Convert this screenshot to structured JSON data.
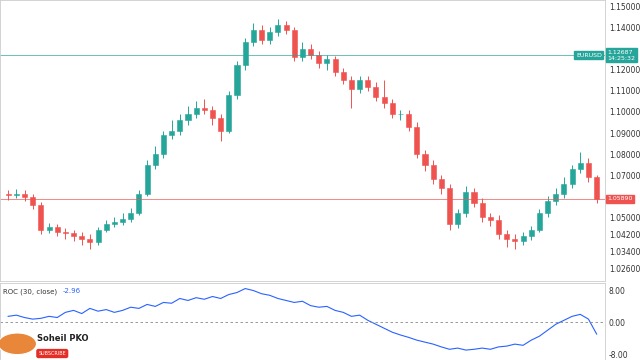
{
  "chart_data": [
    {
      "type": "candlestick",
      "x": [
        0,
        1,
        2,
        3,
        4,
        5,
        6,
        7,
        8,
        9,
        10,
        11,
        12,
        13,
        14,
        15,
        16,
        17,
        18,
        19,
        20,
        21,
        22,
        23,
        24,
        25,
        26,
        27,
        28,
        29,
        30,
        31,
        32,
        33,
        34,
        35,
        36,
        37,
        38,
        39,
        40,
        41,
        42,
        43,
        44,
        45,
        46,
        47,
        48,
        49,
        50,
        51,
        52,
        53,
        54,
        55,
        56,
        57,
        58,
        59,
        60,
        61,
        62,
        63,
        64,
        65,
        66,
        67,
        68,
        69,
        70,
        71,
        72
      ],
      "series": [
        {
          "name": "EURUSD",
          "colors": [
            "#26a69a",
            "#ef5350"
          ],
          "open": [
            1.061,
            1.0605,
            1.0612,
            1.0598,
            1.056,
            1.044,
            1.0455,
            1.043,
            1.0425,
            1.041,
            1.04,
            1.0385,
            1.044,
            1.047,
            1.048,
            1.0495,
            1.052,
            1.061,
            1.075,
            1.08,
            1.089,
            1.091,
            1.096,
            1.099,
            1.102,
            1.101,
            1.097,
            1.091,
            1.108,
            1.122,
            1.133,
            1.139,
            1.134,
            1.138,
            1.141,
            1.139,
            1.126,
            1.13,
            1.127,
            1.123,
            1.125,
            1.119,
            1.115,
            1.111,
            1.115,
            1.112,
            1.107,
            1.104,
            1.099,
            1.099,
            1.093,
            1.08,
            1.075,
            1.068,
            1.064,
            1.047,
            1.052,
            1.062,
            1.057,
            1.05,
            1.049,
            1.042,
            1.04,
            1.039,
            1.041,
            1.044,
            1.052,
            1.058,
            1.061,
            1.066,
            1.073,
            1.076,
            1.069
          ],
          "high": [
            1.063,
            1.0635,
            1.0628,
            1.061,
            1.0575,
            1.0475,
            1.047,
            1.045,
            1.044,
            1.043,
            1.042,
            1.0455,
            1.049,
            1.05,
            1.052,
            1.0545,
            1.063,
            1.077,
            1.084,
            1.091,
            1.096,
            1.099,
            1.103,
            1.105,
            1.106,
            1.103,
            1.099,
            1.11,
            1.124,
            1.135,
            1.142,
            1.141,
            1.14,
            1.144,
            1.143,
            1.14,
            1.133,
            1.132,
            1.129,
            1.127,
            1.1265,
            1.121,
            1.117,
            1.117,
            1.117,
            1.114,
            1.115,
            1.106,
            1.101,
            1.101,
            1.095,
            1.082,
            1.077,
            1.07,
            1.066,
            1.054,
            1.065,
            1.064,
            1.059,
            1.052,
            1.051,
            1.044,
            1.042,
            1.043,
            1.046,
            1.054,
            1.06,
            1.064,
            1.069,
            1.075,
            1.081,
            1.078,
            1.07
          ],
          "low": [
            1.0585,
            1.059,
            1.058,
            1.054,
            1.042,
            1.0425,
            1.041,
            1.04,
            1.039,
            1.037,
            1.035,
            1.037,
            1.043,
            1.0455,
            1.0465,
            1.048,
            1.051,
            1.06,
            1.073,
            1.078,
            1.087,
            1.089,
            1.094,
            1.097,
            1.099,
            1.094,
            1.086,
            1.09,
            1.106,
            1.12,
            1.131,
            1.132,
            1.132,
            1.136,
            1.137,
            1.124,
            1.124,
            1.125,
            1.121,
            1.12,
            1.117,
            1.113,
            1.102,
            1.109,
            1.11,
            1.105,
            1.102,
            1.097,
            1.096,
            1.091,
            1.078,
            1.072,
            1.066,
            1.061,
            1.044,
            1.045,
            1.05,
            1.055,
            1.048,
            1.046,
            1.04,
            1.036,
            1.035,
            1.037,
            1.0395,
            1.043,
            1.05,
            1.056,
            1.059,
            1.064,
            1.071,
            1.067,
            1.057
          ],
          "close": [
            1.0605,
            1.0612,
            1.0598,
            1.056,
            1.044,
            1.0455,
            1.043,
            1.0425,
            1.041,
            1.04,
            1.0385,
            1.044,
            1.047,
            1.048,
            1.0495,
            1.052,
            1.061,
            1.075,
            1.08,
            1.089,
            1.091,
            1.096,
            1.099,
            1.102,
            1.101,
            1.097,
            1.091,
            1.108,
            1.122,
            1.133,
            1.139,
            1.134,
            1.138,
            1.141,
            1.139,
            1.126,
            1.13,
            1.127,
            1.123,
            1.125,
            1.119,
            1.115,
            1.111,
            1.115,
            1.112,
            1.107,
            1.104,
            1.099,
            1.099,
            1.093,
            1.08,
            1.075,
            1.068,
            1.064,
            1.047,
            1.052,
            1.062,
            1.057,
            1.05,
            1.049,
            1.042,
            1.04,
            1.039,
            1.041,
            1.044,
            1.052,
            1.058,
            1.061,
            1.066,
            1.073,
            1.076,
            1.069,
            1.0589
          ]
        }
      ],
      "reference_lines": [
        {
          "name": "EURUSD",
          "value": 1.12687,
          "label": "1.12687",
          "time": "14:25:32",
          "color": "#26a69a"
        },
        {
          "value": 1.0589,
          "label": "1.05890",
          "color": "#ef5350"
        }
      ],
      "xlim": [
        -1,
        73
      ],
      "ylim": [
        1.02,
        1.153
      ],
      "yticks": [
        {
          "value": 1.15,
          "label": "1.15000"
        },
        {
          "value": 1.14,
          "label": "1.14000"
        },
        {
          "value": 1.12,
          "label": "1.12000"
        },
        {
          "value": 1.11,
          "label": "1.11000"
        },
        {
          "value": 1.1,
          "label": "1.10000"
        },
        {
          "value": 1.09,
          "label": "1.09000"
        },
        {
          "value": 1.08,
          "label": "1.08000"
        },
        {
          "value": 1.07,
          "label": "1.07000"
        },
        {
          "value": 1.05,
          "label": "1.05000"
        },
        {
          "value": 1.042,
          "label": "1.04200"
        },
        {
          "value": 1.034,
          "label": "1.03400"
        },
        {
          "value": 1.026,
          "label": "1.02600"
        }
      ],
      "grid": false,
      "tick_labels": "y"
    },
    {
      "type": "line",
      "x": [
        0,
        1,
        2,
        3,
        4,
        5,
        6,
        7,
        8,
        9,
        10,
        11,
        12,
        13,
        14,
        15,
        16,
        17,
        18,
        19,
        20,
        21,
        22,
        23,
        24,
        25,
        26,
        27,
        28,
        29,
        30,
        31,
        32,
        33,
        34,
        35,
        36,
        37,
        38,
        39,
        40,
        41,
        42,
        43,
        44,
        45,
        46,
        47,
        48,
        49,
        50,
        51,
        52,
        53,
        54,
        55,
        56,
        57,
        58,
        59,
        60,
        61,
        62,
        63,
        64,
        65,
        66,
        67,
        68,
        69,
        70,
        71,
        72
      ],
      "series": [
        {
          "name": "ROC (30, close)",
          "color": "#2962ff",
          "values": [
            1.5,
            1.8,
            1.2,
            0.8,
            1.0,
            1.5,
            1.2,
            2.5,
            3.0,
            2.2,
            3.5,
            2.8,
            3.2,
            2.5,
            3.0,
            3.8,
            3.5,
            4.5,
            4.0,
            5.0,
            4.8,
            6.0,
            5.5,
            6.2,
            5.8,
            6.5,
            6.0,
            7.0,
            7.5,
            8.5,
            8.0,
            7.2,
            6.8,
            6.0,
            5.5,
            5.0,
            5.3,
            4.2,
            3.8,
            4.0,
            3.0,
            2.5,
            1.5,
            1.8,
            0.5,
            -0.5,
            -1.5,
            -2.5,
            -3.2,
            -3.8,
            -4.5,
            -5.0,
            -5.5,
            -6.2,
            -6.8,
            -6.5,
            -7.0,
            -6.8,
            -6.5,
            -6.8,
            -6.2,
            -6.0,
            -5.5,
            -5.8,
            -4.5,
            -3.5,
            -2.0,
            -0.5,
            0.5,
            1.5,
            2.0,
            0.8,
            -2.96
          ]
        }
      ],
      "baseline": 0,
      "xlim": [
        -1,
        73
      ],
      "ylim": [
        -9.5,
        10
      ],
      "yticks": [
        {
          "value": 8,
          "label": "8.00"
        },
        {
          "value": 0,
          "label": "0.00"
        },
        {
          "value": -8,
          "label": "-8.00"
        }
      ],
      "grid": false,
      "tick_labels": "y"
    }
  ],
  "overlay": {
    "name": "Soheil PKO",
    "button": "SUBSCRIBE"
  }
}
